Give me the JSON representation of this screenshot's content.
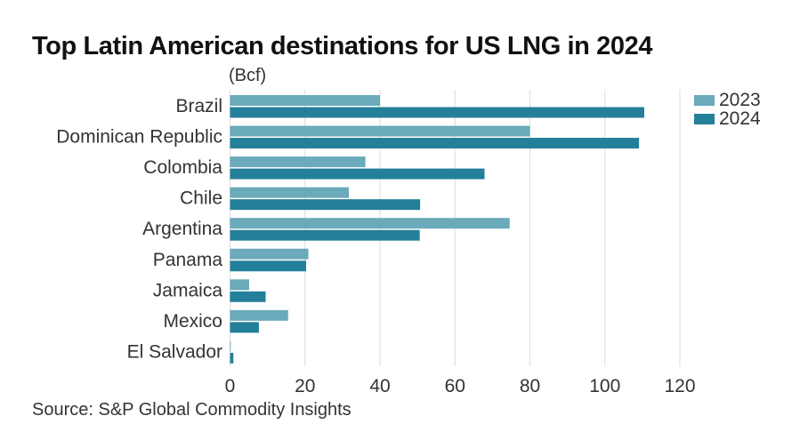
{
  "chart_data": {
    "type": "bar",
    "orientation": "horizontal",
    "title": "Top Latin American destinations for US LNG in 2024",
    "unit_label": "(Bcf)",
    "xlabel": "",
    "ylabel": "",
    "xlim": [
      0,
      120
    ],
    "xticks": [
      0,
      20,
      40,
      60,
      80,
      100,
      120
    ],
    "grid": true,
    "legend_position": "top-right",
    "categories": [
      "Brazil",
      "Dominican Republic",
      "Colombia",
      "Chile",
      "Argentina",
      "Panama",
      "Jamaica",
      "Mexico",
      "El Salvador"
    ],
    "series": [
      {
        "name": "2023",
        "color": "#6aaabb",
        "values": [
          40.0,
          80.0,
          36.1,
          31.7,
          74.6,
          20.9,
          5.1,
          15.5,
          0.2
        ]
      },
      {
        "name": "2024",
        "color": "#24809a",
        "values": [
          110.5,
          109.1,
          67.9,
          50.7,
          50.6,
          20.3,
          9.5,
          7.7,
          0.9
        ]
      }
    ],
    "source": "Source: S&P Global Commodity Insights"
  }
}
